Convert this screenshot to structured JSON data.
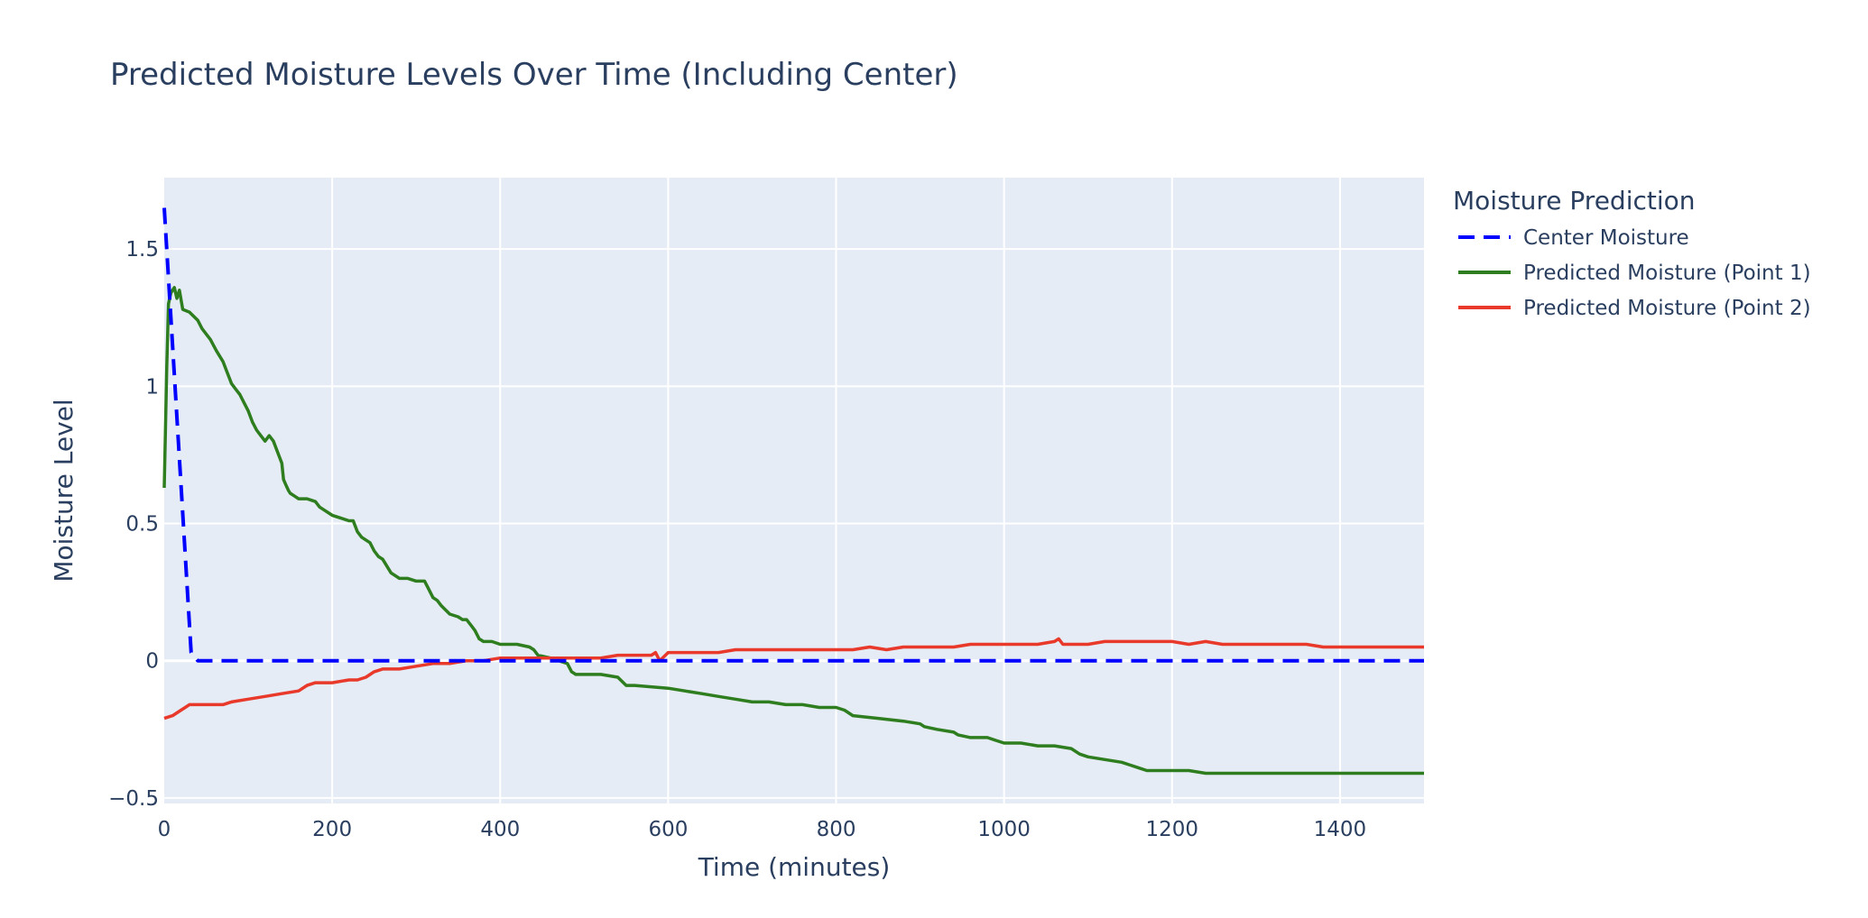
{
  "chart_data": {
    "type": "line",
    "title": "Predicted Moisture Levels Over Time (Including Center)",
    "xlabel": "Time (minutes)",
    "ylabel": "Moisture Level",
    "xlim": [
      0,
      1500
    ],
    "ylim": [
      -0.52,
      1.76
    ],
    "x_ticks": [
      0,
      200,
      400,
      600,
      800,
      1000,
      1200,
      1400
    ],
    "x_tick_labels": [
      "0",
      "200",
      "400",
      "600",
      "800",
      "1000",
      "1200",
      "1400"
    ],
    "y_ticks": [
      -0.5,
      0,
      0.5,
      1,
      1.5
    ],
    "y_tick_labels": [
      "−0.5",
      "0",
      "0.5",
      "1",
      "1.5"
    ],
    "grid": true,
    "legend": {
      "title": "Moisture Prediction",
      "placement": "right"
    },
    "series": [
      {
        "name": "Center Moisture",
        "color": "#0000ff",
        "dash": "dash",
        "x": [
          0,
          32,
          40,
          1500
        ],
        "y": [
          1.65,
          0.03,
          0.0,
          0.0
        ]
      },
      {
        "name": "Predicted Moisture (Point 1)",
        "color": "#2e7d1e",
        "dash": "solid",
        "x": [
          0,
          3,
          5,
          8,
          12,
          15,
          18,
          22,
          30,
          40,
          45,
          55,
          62,
          70,
          75,
          80,
          85,
          90,
          95,
          100,
          105,
          110,
          115,
          120,
          125,
          130,
          135,
          140,
          142,
          145,
          148,
          150,
          155,
          160,
          170,
          180,
          185,
          190,
          200,
          210,
          220,
          225,
          230,
          235,
          240,
          245,
          250,
          255,
          260,
          270,
          280,
          290,
          300,
          310,
          315,
          320,
          325,
          330,
          340,
          350,
          355,
          360,
          365,
          370,
          375,
          380,
          390,
          400,
          420,
          435,
          440,
          445,
          460,
          480,
          485,
          490,
          500,
          520,
          540,
          550,
          560,
          600,
          620,
          640,
          660,
          680,
          700,
          720,
          740,
          760,
          780,
          800,
          810,
          820,
          850,
          880,
          900,
          905,
          920,
          940,
          945,
          960,
          980,
          990,
          1000,
          1020,
          1040,
          1060,
          1080,
          1090,
          1100,
          1120,
          1140,
          1150,
          1160,
          1170,
          1180,
          1200,
          1220,
          1240,
          1260,
          1300,
          1350,
          1400,
          1500
        ],
        "y": [
          0.63,
          1.07,
          1.3,
          1.34,
          1.36,
          1.32,
          1.35,
          1.28,
          1.27,
          1.24,
          1.21,
          1.17,
          1.13,
          1.09,
          1.05,
          1.01,
          0.99,
          0.97,
          0.94,
          0.91,
          0.87,
          0.84,
          0.82,
          0.8,
          0.82,
          0.8,
          0.76,
          0.72,
          0.66,
          0.64,
          0.62,
          0.61,
          0.6,
          0.59,
          0.59,
          0.58,
          0.56,
          0.55,
          0.53,
          0.52,
          0.51,
          0.51,
          0.47,
          0.45,
          0.44,
          0.43,
          0.4,
          0.38,
          0.37,
          0.32,
          0.3,
          0.3,
          0.29,
          0.29,
          0.26,
          0.23,
          0.22,
          0.2,
          0.17,
          0.16,
          0.15,
          0.15,
          0.13,
          0.11,
          0.08,
          0.07,
          0.07,
          0.06,
          0.06,
          0.05,
          0.04,
          0.02,
          0.01,
          -0.01,
          -0.04,
          -0.05,
          -0.05,
          -0.05,
          -0.06,
          -0.09,
          -0.09,
          -0.1,
          -0.11,
          -0.12,
          -0.13,
          -0.14,
          -0.15,
          -0.15,
          -0.16,
          -0.16,
          -0.17,
          -0.17,
          -0.18,
          -0.2,
          -0.21,
          -0.22,
          -0.23,
          -0.24,
          -0.25,
          -0.26,
          -0.27,
          -0.28,
          -0.28,
          -0.29,
          -0.3,
          -0.3,
          -0.31,
          -0.31,
          -0.32,
          -0.34,
          -0.35,
          -0.36,
          -0.37,
          -0.38,
          -0.39,
          -0.4,
          -0.4,
          -0.4,
          -0.4,
          -0.41,
          -0.41,
          -0.41,
          -0.41,
          -0.41,
          -0.41
        ]
      },
      {
        "name": "Predicted Moisture (Point 2)",
        "color": "#e8392b",
        "dash": "solid",
        "x": [
          0,
          10,
          20,
          25,
          30,
          40,
          50,
          60,
          70,
          80,
          100,
          120,
          140,
          160,
          170,
          180,
          200,
          220,
          230,
          240,
          250,
          260,
          280,
          300,
          320,
          340,
          360,
          380,
          400,
          420,
          440,
          460,
          480,
          500,
          520,
          540,
          560,
          580,
          585,
          590,
          600,
          620,
          640,
          660,
          680,
          700,
          720,
          740,
          760,
          780,
          800,
          820,
          840,
          860,
          880,
          900,
          920,
          940,
          960,
          980,
          1000,
          1020,
          1040,
          1060,
          1065,
          1070,
          1080,
          1100,
          1120,
          1140,
          1160,
          1180,
          1200,
          1220,
          1240,
          1260,
          1280,
          1300,
          1320,
          1340,
          1360,
          1380,
          1400,
          1450,
          1500
        ],
        "y": [
          -0.21,
          -0.2,
          -0.18,
          -0.17,
          -0.16,
          -0.16,
          -0.16,
          -0.16,
          -0.16,
          -0.15,
          -0.14,
          -0.13,
          -0.12,
          -0.11,
          -0.09,
          -0.08,
          -0.08,
          -0.07,
          -0.07,
          -0.06,
          -0.04,
          -0.03,
          -0.03,
          -0.02,
          -0.01,
          -0.01,
          0.0,
          0.0,
          0.01,
          0.01,
          0.01,
          0.01,
          0.01,
          0.01,
          0.01,
          0.02,
          0.02,
          0.02,
          0.03,
          0.0,
          0.03,
          0.03,
          0.03,
          0.03,
          0.04,
          0.04,
          0.04,
          0.04,
          0.04,
          0.04,
          0.04,
          0.04,
          0.05,
          0.04,
          0.05,
          0.05,
          0.05,
          0.05,
          0.06,
          0.06,
          0.06,
          0.06,
          0.06,
          0.07,
          0.08,
          0.06,
          0.06,
          0.06,
          0.07,
          0.07,
          0.07,
          0.07,
          0.07,
          0.06,
          0.07,
          0.06,
          0.06,
          0.06,
          0.06,
          0.06,
          0.06,
          0.05,
          0.05,
          0.05,
          0.05
        ]
      }
    ]
  }
}
